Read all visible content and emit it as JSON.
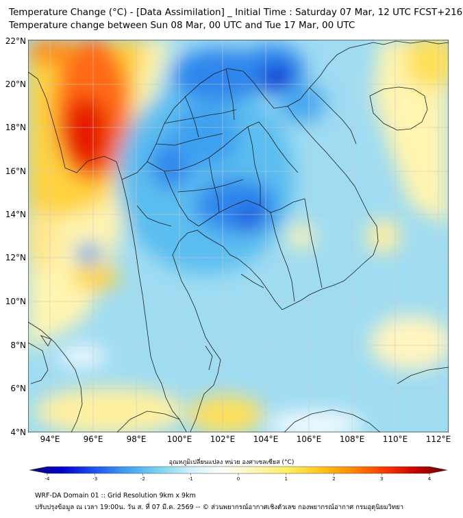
{
  "title_line1": "Temperature Change (°C) - [Data Assimilation] _ Initial Time : Saturday 07 Mar, 12 UTC FCST+216",
  "title_line2": "Temperature change between Sun 08 Mar, 00 UTC and Tue 17 Mar, 00 UTC",
  "lat_labels": [
    "22°N",
    "20°N",
    "18°N",
    "16°N",
    "14°N",
    "12°N",
    "10°N",
    "8°N",
    "6°N",
    "4°N"
  ],
  "lon_labels": [
    "94°E",
    "96°E",
    "98°E",
    "100°E",
    "102°E",
    "104°E",
    "106°E",
    "108°E",
    "110°E",
    "112°E"
  ],
  "colorbar": {
    "label": "อุณหภูมิเปลี่ยนแปลง หน่วย องศาเซลเซียส (°C)",
    "min": -4,
    "max": 4,
    "ticks": [
      "-4",
      "-3",
      "-2",
      "-1",
      "0",
      "1",
      "2",
      "3",
      "4"
    ],
    "colors": [
      "#0a0a6e",
      "#0000c8",
      "#1e50f0",
      "#3ca0f0",
      "#78d2f0",
      "#d2f0fa",
      "#ffffff",
      "#fff5b4",
      "#fff064",
      "#ffc81e",
      "#ff8c00",
      "#ff3c00",
      "#c80000",
      "#640000"
    ]
  },
  "footer_line1": "WRF-DA Domain 01 :: Grid Resolution 9km x 9km",
  "footer_line2": "ปรับปรุงข้อมูล ณ เวลา 19:00น. วัน ส. ที่ 07 มี.ค. 2569 -- © ส่วนพยากรณ์อากาศเชิงตัวเลข กองพยากรณ์อากาศ กรมอุตุนิยมวิทยา"
}
